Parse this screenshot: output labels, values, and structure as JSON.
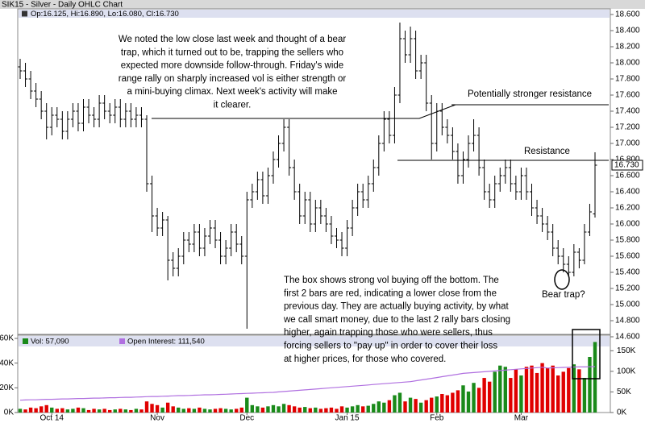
{
  "chart_data": {
    "type": "ohlc",
    "title": "SIK15 - Silver - Daily OHLC Chart",
    "header": "Op:16.125, Hi:16.890, Lo:16.080, Cl:16.730",
    "categories": [
      null,
      null,
      null,
      null,
      null,
      null,
      "Oct 14",
      null,
      null,
      null,
      null,
      null,
      null,
      null,
      null,
      null,
      null,
      null,
      null,
      null,
      null,
      null,
      null,
      null,
      null,
      null,
      "Nov",
      null,
      null,
      null,
      null,
      null,
      null,
      null,
      null,
      null,
      null,
      null,
      null,
      null,
      null,
      null,
      null,
      "Dec",
      null,
      null,
      null,
      null,
      null,
      null,
      null,
      null,
      null,
      null,
      null,
      null,
      null,
      null,
      null,
      null,
      null,
      null,
      "Jan 15",
      null,
      null,
      null,
      null,
      null,
      null,
      null,
      null,
      null,
      null,
      null,
      null,
      null,
      null,
      null,
      null,
      "Feb",
      null,
      null,
      null,
      null,
      null,
      null,
      null,
      null,
      null,
      null,
      null,
      null,
      null,
      null,
      null,
      "Mar",
      null,
      null,
      null,
      null,
      null,
      null,
      null,
      null,
      null,
      null,
      null,
      null,
      null,
      null
    ],
    "open": [
      17.95,
      17.9,
      17.8,
      17.65,
      17.55,
      17.4,
      17.2,
      17.35,
      17.3,
      17.15,
      17.3,
      17.4,
      17.25,
      17.45,
      17.35,
      17.3,
      17.5,
      17.4,
      17.35,
      17.45,
      17.3,
      17.4,
      17.3,
      17.35,
      17.3,
      16.5,
      16.1,
      15.95,
      16.05,
      15.55,
      15.45,
      15.6,
      15.8,
      15.75,
      15.9,
      15.7,
      15.85,
      15.95,
      15.8,
      15.6,
      15.7,
      15.9,
      15.75,
      15.6,
      16.3,
      16.4,
      16.55,
      16.35,
      16.6,
      16.8,
      17.0,
      17.2,
      16.7,
      16.4,
      16.1,
      16.3,
      16.0,
      16.2,
      16.1,
      16.0,
      15.85,
      15.8,
      15.7,
      15.95,
      16.2,
      16.4,
      16.3,
      16.5,
      16.7,
      17.0,
      17.3,
      17.1,
      17.6,
      18.3,
      18.1,
      18.3,
      17.9,
      18.0,
      17.5,
      17.0,
      17.4,
      17.2,
      17.1,
      16.9,
      16.6,
      16.8,
      17.0,
      17.1,
      16.7,
      16.4,
      16.3,
      16.5,
      16.6,
      16.7,
      16.5,
      16.4,
      16.6,
      16.4,
      16.2,
      16.1,
      16.0,
      15.9,
      15.7,
      15.6,
      15.5,
      15.4,
      15.65,
      15.55,
      15.9,
      16.125
    ],
    "high": [
      18.05,
      18.0,
      17.9,
      17.75,
      17.65,
      17.5,
      17.45,
      17.45,
      17.4,
      17.4,
      17.5,
      17.5,
      17.55,
      17.55,
      17.45,
      17.6,
      17.6,
      17.5,
      17.55,
      17.55,
      17.5,
      17.5,
      17.45,
      17.45,
      17.35,
      16.6,
      16.2,
      16.15,
      16.1,
      15.65,
      15.7,
      15.9,
      15.9,
      16.0,
      16.0,
      15.95,
      16.05,
      16.05,
      15.9,
      15.8,
      16.0,
      16.0,
      15.85,
      16.4,
      16.5,
      16.65,
      16.65,
      16.7,
      16.9,
      17.1,
      17.3,
      17.3,
      16.8,
      16.5,
      16.4,
      16.4,
      16.3,
      16.3,
      16.2,
      16.1,
      15.95,
      15.9,
      16.05,
      16.3,
      16.5,
      16.5,
      16.6,
      16.8,
      17.1,
      17.4,
      17.4,
      17.7,
      18.5,
      18.4,
      18.45,
      18.4,
      18.1,
      18.1,
      17.6,
      17.5,
      17.5,
      17.3,
      17.2,
      17.0,
      16.9,
      17.1,
      17.3,
      17.2,
      16.8,
      16.5,
      16.6,
      16.7,
      16.8,
      16.8,
      16.6,
      16.7,
      16.7,
      16.5,
      16.3,
      16.2,
      16.1,
      16.0,
      15.8,
      15.7,
      15.6,
      15.75,
      15.7,
      16.0,
      16.25,
      16.89
    ],
    "low": [
      17.8,
      17.7,
      17.55,
      17.45,
      17.3,
      17.05,
      17.1,
      17.2,
      17.05,
      17.05,
      17.2,
      17.15,
      17.15,
      17.25,
      17.2,
      17.2,
      17.3,
      17.25,
      17.25,
      17.2,
      17.2,
      17.2,
      17.2,
      17.2,
      16.4,
      15.9,
      15.85,
      15.85,
      15.3,
      15.35,
      15.35,
      15.5,
      15.65,
      15.65,
      15.6,
      15.6,
      15.75,
      15.7,
      15.5,
      15.5,
      15.6,
      15.65,
      15.5,
      14.7,
      16.2,
      16.3,
      16.25,
      16.25,
      16.5,
      16.7,
      16.9,
      16.6,
      16.3,
      16.0,
      16.0,
      15.9,
      15.9,
      16.0,
      15.9,
      15.75,
      15.7,
      15.6,
      15.6,
      15.85,
      16.1,
      16.2,
      16.2,
      16.4,
      16.6,
      16.9,
      17.0,
      17.0,
      17.5,
      18.0,
      18.0,
      17.8,
      17.8,
      17.4,
      16.8,
      16.9,
      17.1,
      17.0,
      16.8,
      16.5,
      16.5,
      16.7,
      16.9,
      16.6,
      16.3,
      16.2,
      16.2,
      16.4,
      16.5,
      16.4,
      16.3,
      16.3,
      16.3,
      16.1,
      16.0,
      15.9,
      15.8,
      15.6,
      15.5,
      15.4,
      15.35,
      15.35,
      15.45,
      15.5,
      15.85,
      16.08
    ],
    "close": [
      17.9,
      17.8,
      17.65,
      17.55,
      17.4,
      17.2,
      17.35,
      17.3,
      17.15,
      17.3,
      17.4,
      17.25,
      17.45,
      17.35,
      17.3,
      17.5,
      17.4,
      17.35,
      17.45,
      17.3,
      17.4,
      17.3,
      17.35,
      17.3,
      16.5,
      16.1,
      15.95,
      16.05,
      15.55,
      15.45,
      15.6,
      15.8,
      15.75,
      15.9,
      15.7,
      15.85,
      15.95,
      15.8,
      15.6,
      15.7,
      15.9,
      15.75,
      15.6,
      16.3,
      16.4,
      16.55,
      16.35,
      16.6,
      16.8,
      17.0,
      17.2,
      16.7,
      16.4,
      16.1,
      16.3,
      16.0,
      16.2,
      16.1,
      16.0,
      15.85,
      15.8,
      15.7,
      15.95,
      16.2,
      16.4,
      16.3,
      16.5,
      16.7,
      17.0,
      17.3,
      17.1,
      17.6,
      18.3,
      18.1,
      18.3,
      17.9,
      18.0,
      17.5,
      17.0,
      17.4,
      17.2,
      17.1,
      16.9,
      16.6,
      16.8,
      17.0,
      17.1,
      16.7,
      16.4,
      16.3,
      16.5,
      16.6,
      16.7,
      16.5,
      16.4,
      16.6,
      16.4,
      16.2,
      16.1,
      16.0,
      15.9,
      15.7,
      15.6,
      15.5,
      15.4,
      15.65,
      15.55,
      15.9,
      16.15,
      16.73
    ],
    "color": "#000000",
    "ylim": [
      14.6,
      18.6
    ],
    "yticks": [
      {
        "value": 14.6,
        "label": "14.600"
      },
      {
        "value": 14.8,
        "label": "14.800"
      },
      {
        "value": 15.0,
        "label": "15.000"
      },
      {
        "value": 15.2,
        "label": "15.200"
      },
      {
        "value": 15.4,
        "label": "15.400"
      },
      {
        "value": 15.6,
        "label": "15.600"
      },
      {
        "value": 15.8,
        "label": "15.800"
      },
      {
        "value": 16.0,
        "label": "16.000"
      },
      {
        "value": 16.2,
        "label": "16.200"
      },
      {
        "value": 16.4,
        "label": "16.400"
      },
      {
        "value": 16.6,
        "label": "16.600"
      },
      {
        "value": 16.8,
        "label": "16.800"
      },
      {
        "value": 17.0,
        "label": "17.000"
      },
      {
        "value": 17.2,
        "label": "17.200"
      },
      {
        "value": 17.4,
        "label": "17.400"
      },
      {
        "value": 17.6,
        "label": "17.600"
      },
      {
        "value": 17.8,
        "label": "17.800"
      },
      {
        "value": 18.0,
        "label": "18.000"
      },
      {
        "value": 18.2,
        "label": "18.200"
      },
      {
        "value": 18.4,
        "label": "18.400"
      },
      {
        "value": 18.6,
        "label": "18.600"
      }
    ],
    "last_price": {
      "value": 16.73,
      "label": "16.730"
    },
    "annotations": {
      "comment": [
        "We noted the low close last week and thought of a bear",
        "trap, which it turned out to be, trapping the sellers who",
        "expected more downside follow-through.  Friday's wide",
        "range rally on sharply increased vol is either strength or",
        "a mini-buying climax.  Next week's activity will make",
        "it clearer."
      ],
      "upper_resistance": "Potentially stronger resistance",
      "resistance": "Resistance",
      "bear_trap": "Bear trap?",
      "box_note": [
        "The box shows strong vol buying off the bottom.  The",
        "first 2 bars are red, indicating a lower close from the",
        "previous day.  They are actually buying activity, by what",
        "we call smart money, due to the last 2 rally bars closing",
        "higher, again trapping those who were sellers, thus",
        "forcing sellers to \"pay up\" in order to cover their loss",
        "at higher prices, for those who covered."
      ]
    },
    "volume": {
      "legend": "Vol: 57,090",
      "up_color": "#1a8a1a",
      "down_color": "#e00000",
      "values": [
        3000,
        2500,
        4000,
        3500,
        5000,
        6000,
        4000,
        3000,
        3500,
        2500,
        3000,
        4000,
        3500,
        2000,
        3000,
        2500,
        3000,
        2000,
        2500,
        3000,
        2500,
        2000,
        3000,
        2500,
        9000,
        7000,
        6000,
        4000,
        8000,
        5000,
        4000,
        3000,
        3500,
        3000,
        4000,
        3000,
        2500,
        3000,
        3500,
        3000,
        2500,
        3000,
        4000,
        12000,
        6000,
        5000,
        4000,
        5000,
        6000,
        5000,
        7000,
        6000,
        5000,
        4000,
        4500,
        3500,
        4000,
        3000,
        3500,
        4000,
        3000,
        5000,
        4000,
        5000,
        6000,
        5000,
        5500,
        7000,
        9000,
        8000,
        10000,
        14000,
        16000,
        9000,
        12000,
        11000,
        8000,
        10000,
        12000,
        13000,
        15000,
        14000,
        16000,
        18000,
        22000,
        17000,
        24000,
        20000,
        28000,
        25000,
        33000,
        38000,
        37000,
        28000,
        35000,
        30000,
        37000,
        38000,
        32000,
        40000,
        36000,
        38000,
        30000,
        33000,
        36000,
        39000,
        35000,
        28000,
        45000,
        57090
      ],
      "ylim": [
        0,
        60000
      ],
      "yticks": [
        {
          "value": 0,
          "label": "0K"
        },
        {
          "value": 20000,
          "label": "20K"
        },
        {
          "value": 40000,
          "label": "40K"
        },
        {
          "value": 60000,
          "label": "60K"
        }
      ]
    },
    "open_interest": {
      "legend": "Open Interest: 111,540",
      "color": "#b070e0",
      "axis": "y2",
      "values": [
        30000,
        30500,
        31000,
        31000,
        31500,
        32000,
        32000,
        32500,
        33000,
        33000,
        33500,
        34000,
        34000,
        34500,
        35000,
        35000,
        35500,
        36000,
        36000,
        36500,
        37000,
        37000,
        37500,
        38000,
        38500,
        39000,
        39000,
        39500,
        40000,
        40500,
        41000,
        41000,
        41500,
        42000,
        42500,
        43000,
        43000,
        43500,
        44000,
        44500,
        45000,
        45500,
        46000,
        46500,
        47000,
        47500,
        48000,
        48500,
        49000,
        50000,
        51000,
        52000,
        53000,
        54000,
        55000,
        56000,
        57000,
        58000,
        59000,
        60000,
        61000,
        62000,
        63000,
        64000,
        65000,
        66000,
        67000,
        68000,
        69000,
        70000,
        71000,
        72000,
        73000,
        74000,
        75000,
        77000,
        79000,
        81000,
        83000,
        85000,
        87000,
        89000,
        91000,
        93000,
        95000,
        96000,
        97000,
        98000,
        99000,
        100000,
        101000,
        102000,
        103000,
        104000,
        105000,
        106000,
        107000,
        108000,
        109000,
        110000,
        108000,
        108500,
        109000,
        109500,
        110000,
        110500,
        111000,
        110800,
        111200,
        111540
      ],
      "y2lim": [
        0,
        180000
      ],
      "y2ticks": [
        {
          "value": 0,
          "label": "0K"
        },
        {
          "value": 50000,
          "label": "50K"
        },
        {
          "value": 100000,
          "label": "100K"
        },
        {
          "value": 150000,
          "label": "150K"
        }
      ]
    }
  }
}
